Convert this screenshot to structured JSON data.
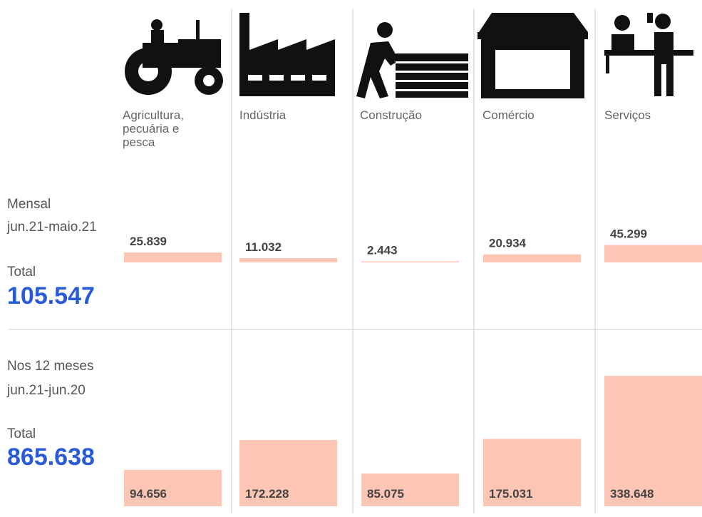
{
  "chart_data": [
    {
      "type": "bar",
      "title": "Mensal",
      "subtitle": "jun.21-maio.21",
      "total_label": "Total",
      "total": "105.547",
      "categories": [
        "Agricultura, pecuária e pesca",
        "Indústria",
        "Construção",
        "Comércio",
        "Serviços"
      ],
      "values": [
        25839,
        11032,
        2443,
        20934,
        45299
      ],
      "value_labels": [
        "25.839",
        "11.032",
        "2.443",
        "20.934",
        "45.299"
      ],
      "color": "#fcc5b4"
    },
    {
      "type": "bar",
      "title": "Nos 12 meses",
      "subtitle": "jun.21-jun.20",
      "total_label": "Total",
      "total": "865.638",
      "values": [
        94656,
        172228,
        85075,
        175031,
        338648
      ],
      "value_labels": [
        "94.656",
        "172.228",
        "85.075",
        "175.031",
        "338.648"
      ],
      "color": "#fcc5b4"
    }
  ]
}
